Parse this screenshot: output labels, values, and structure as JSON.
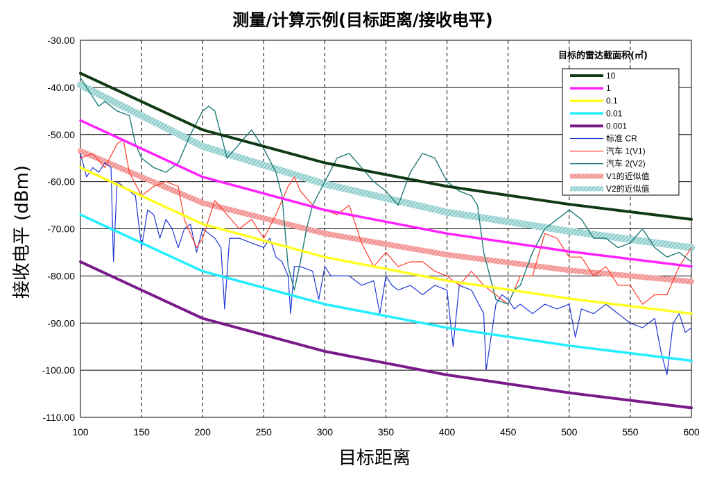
{
  "chart_data": {
    "type": "line",
    "title": "测量/计算示例(目标距离/接收电平)",
    "xlabel": "目标距离",
    "ylabel": "接收电平 (dBm)",
    "xlim": [
      100,
      600
    ],
    "ylim": [
      -110,
      -30
    ],
    "x_ticks": [
      "100",
      "150",
      "200",
      "250",
      "300",
      "350",
      "400",
      "450",
      "500",
      "550",
      "600"
    ],
    "y_ticks": [
      "-30.00",
      "-40.00",
      "-50.00",
      "-60.00",
      "-70.00",
      "-80.00",
      "-90.00",
      "-100.00",
      "-110.00"
    ],
    "grid": {
      "horizontal": "solid",
      "vertical": "dashed"
    },
    "legend": {
      "title": "目标的雷达截面积(㎡)",
      "placement": "top-right"
    },
    "series": [
      {
        "name": "10",
        "color": "#0f3a14",
        "x": [
          100,
          200,
          300,
          400,
          500,
          600
        ],
        "y": [
          -37,
          -49,
          -56,
          -61,
          -64.8,
          -68
        ]
      },
      {
        "name": "1",
        "color": "#ff22ff",
        "x": [
          100,
          200,
          300,
          400,
          500,
          600
        ],
        "y": [
          -47,
          -59,
          -66,
          -71,
          -74.8,
          -78
        ]
      },
      {
        "name": "0.1",
        "color": "#ffff22",
        "x": [
          100,
          200,
          300,
          400,
          500,
          600
        ],
        "y": [
          -57,
          -69,
          -76,
          -81,
          -84.8,
          -88
        ]
      },
      {
        "name": "0.01",
        "color": "#22eeff",
        "x": [
          100,
          200,
          300,
          400,
          500,
          600
        ],
        "y": [
          -67,
          -79,
          -86,
          -91,
          -94.8,
          -98
        ]
      },
      {
        "name": "0.001",
        "color": "#7a1a8a",
        "x": [
          100,
          200,
          300,
          400,
          500,
          600
        ],
        "y": [
          -77,
          -89,
          -96,
          -101,
          -104.8,
          -108
        ]
      },
      {
        "name": "标准 CR",
        "color": "#1f36d6",
        "x": [
          100,
          105,
          110,
          115,
          120,
          125,
          127,
          130,
          135,
          140,
          145,
          150,
          155,
          160,
          165,
          170,
          175,
          180,
          185,
          190,
          195,
          200,
          205,
          210,
          215,
          218,
          222,
          230,
          240,
          250,
          255,
          260,
          265,
          270,
          272,
          275,
          280,
          290,
          295,
          300,
          305,
          310,
          320,
          330,
          340,
          345,
          350,
          355,
          360,
          370,
          380,
          390,
          400,
          405,
          410,
          420,
          430,
          432,
          440,
          445,
          450,
          455,
          460,
          470,
          480,
          490,
          500,
          505,
          510,
          520,
          530,
          540,
          550,
          560,
          570,
          575,
          580,
          585,
          590,
          595,
          600
        ],
        "y": [
          -54,
          -59,
          -57,
          -58,
          -56,
          -57,
          -77,
          -60,
          -61,
          -62,
          -63,
          -74,
          -66,
          -67,
          -72,
          -68,
          -70,
          -74,
          -70,
          -69,
          -75,
          -70,
          -71,
          -72,
          -74,
          -87,
          -72,
          -72,
          -73,
          -74,
          -72,
          -76,
          -77,
          -80,
          -88,
          -78,
          -78,
          -79,
          -85,
          -78,
          -80,
          -80,
          -80,
          -82,
          -81,
          -88,
          -80,
          -82,
          -83,
          -82,
          -84,
          -82,
          -83,
          -95,
          -82,
          -83,
          -88,
          -100,
          -86,
          -84,
          -85,
          -87,
          -86,
          -88,
          -86,
          -87,
          -86,
          -93,
          -87,
          -88,
          -86,
          -88,
          -90,
          -91,
          -89,
          -96,
          -101,
          -90,
          -88,
          -92,
          -91
        ]
      },
      {
        "name": "汽车 1(V1)",
        "color": "#ff3a2a",
        "x": [
          100,
          110,
          120,
          130,
          135,
          140,
          150,
          160,
          170,
          180,
          185,
          190,
          195,
          200,
          210,
          220,
          230,
          240,
          250,
          260,
          270,
          275,
          280,
          290,
          300,
          310,
          320,
          330,
          340,
          350,
          360,
          370,
          380,
          390,
          400,
          410,
          420,
          430,
          440,
          450,
          460,
          470,
          480,
          490,
          500,
          510,
          520,
          530,
          540,
          550,
          560,
          570,
          580,
          590,
          600
        ],
        "y": [
          -55,
          -54,
          -57,
          -52,
          -51,
          -58,
          -63,
          -61,
          -60,
          -61,
          -68,
          -71,
          -74,
          -72,
          -64,
          -67,
          -70,
          -68,
          -72,
          -67,
          -61,
          -59,
          -62,
          -65,
          -66,
          -67,
          -65,
          -73,
          -78,
          -75,
          -78,
          -77,
          -77,
          -79,
          -80,
          -82,
          -79,
          -82,
          -84,
          -86,
          -80,
          -80,
          -71,
          -72,
          -76,
          -76,
          -80,
          -78,
          -82,
          -82,
          -86,
          -84,
          -84,
          -78,
          -74
        ]
      },
      {
        "name": "汽车 2(V2)",
        "color": "#1e7a78",
        "x": [
          100,
          105,
          110,
          115,
          120,
          130,
          140,
          145,
          150,
          160,
          170,
          180,
          190,
          200,
          205,
          210,
          215,
          220,
          230,
          240,
          250,
          260,
          265,
          270,
          275,
          280,
          285,
          290,
          300,
          310,
          320,
          330,
          340,
          350,
          360,
          370,
          380,
          390,
          400,
          410,
          420,
          425,
          430,
          440,
          450,
          455,
          460,
          470,
          480,
          490,
          500,
          510,
          520,
          530,
          540,
          550,
          560,
          570,
          580,
          590,
          600
        ],
        "y": [
          -38,
          -40,
          -42,
          -44,
          -43,
          -45,
          -46,
          -52,
          -55,
          -57,
          -58,
          -56,
          -50,
          -45,
          -44,
          -45,
          -50,
          -55,
          -52,
          -49,
          -53,
          -58,
          -63,
          -78,
          -83,
          -77,
          -70,
          -65,
          -60,
          -55,
          -54,
          -57,
          -60,
          -62,
          -65,
          -58,
          -54,
          -55,
          -60,
          -62,
          -63,
          -65,
          -75,
          -85,
          -86,
          -83,
          -82,
          -75,
          -70,
          -68,
          -66,
          -68,
          -72,
          -72,
          -74,
          -73,
          -70,
          -74,
          -76,
          -75,
          -77
        ]
      },
      {
        "name": "V1的近似值",
        "color": "#f2a0a0",
        "x": [
          100,
          200,
          300,
          400,
          500,
          600
        ],
        "y": [
          -53.5,
          -64.5,
          -71,
          -75.5,
          -78.8,
          -81.2
        ]
      },
      {
        "name": "V2的近似值",
        "color": "#9fd0cf",
        "x": [
          100,
          200,
          300,
          400,
          500,
          600
        ],
        "y": [
          -39.5,
          -52.5,
          -60.5,
          -66.5,
          -70.5,
          -74
        ]
      }
    ]
  }
}
